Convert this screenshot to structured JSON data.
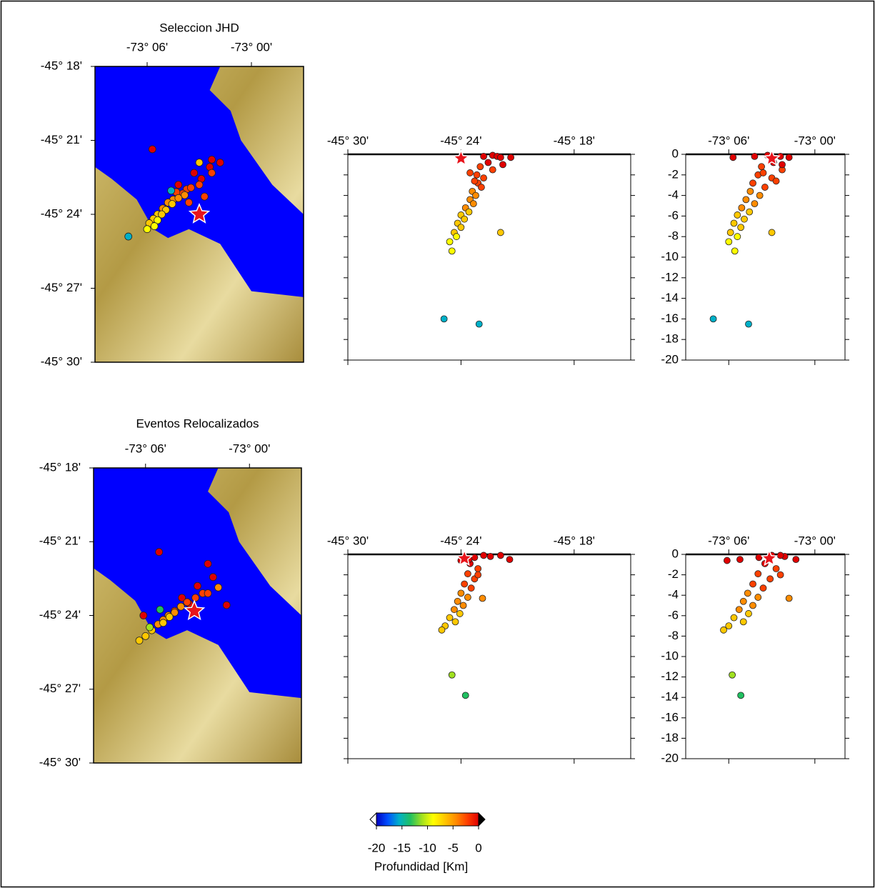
{
  "chart_data": [
    {
      "type": "scatter",
      "title": "Seleccion JHD",
      "map": {
        "xlim": [
          -73.15,
          -72.95
        ],
        "ylim": [
          -45.5,
          -45.3
        ],
        "xticks": [
          {
            "value": -73.1,
            "label": "-73° 06'"
          },
          {
            "value": -73.0,
            "label": "-73° 00'"
          }
        ],
        "yticks": [
          {
            "value": -45.3,
            "label": "-45° 18'"
          },
          {
            "value": -45.35,
            "label": "-45° 21'"
          },
          {
            "value": -45.4,
            "label": "-45° 24'"
          },
          {
            "value": -45.45,
            "label": "-45° 27'"
          },
          {
            "value": -45.5,
            "label": "-45° 30'"
          }
        ]
      },
      "lat_section": {
        "xlim": [
          -45.5,
          -45.25
        ],
        "xticks": [
          {
            "value": -45.5,
            "label": "-45° 30'"
          },
          {
            "value": -45.4,
            "label": "-45° 24'"
          },
          {
            "value": -45.3,
            "label": "-45° 18'"
          }
        ]
      },
      "lon_section": {
        "xlim": [
          -73.15,
          -72.965
        ],
        "xticks": [
          {
            "value": -73.1,
            "label": "-73° 06'"
          },
          {
            "value": -73.0,
            "label": "-73° 00'"
          }
        ]
      },
      "depth_lim": [
        -20,
        0
      ],
      "depth_ticks": [
        0,
        -2,
        -4,
        -6,
        -8,
        -10,
        -12,
        -14,
        -16,
        -18,
        -20
      ],
      "mainshock": {
        "lon": -73.05,
        "lat": -45.4,
        "depth": -0.4
      },
      "events": {
        "lon": [
          -73.055,
          -73.04,
          -73.03,
          -73.07,
          -73.048,
          -73.062,
          -73.038,
          -73.066,
          -73.05,
          -73.072,
          -73.058,
          -73.075,
          -73.064,
          -73.08,
          -73.07,
          -73.085,
          -73.076,
          -73.09,
          -73.082,
          -73.094,
          -73.086,
          -73.098,
          -73.09,
          -73.1,
          -73.093,
          -73.05,
          -73.118,
          -73.077,
          -73.095,
          -73.038,
          -73.06,
          -73.045
        ],
        "lat": [
          -45.372,
          -45.368,
          -45.365,
          -45.38,
          -45.376,
          -45.383,
          -45.372,
          -45.386,
          -45.38,
          -45.385,
          -45.382,
          -45.39,
          -45.387,
          -45.392,
          -45.389,
          -45.396,
          -45.393,
          -45.4,
          -45.397,
          -45.403,
          -45.4,
          -45.406,
          -45.404,
          -45.41,
          -45.408,
          -45.365,
          -45.415,
          -45.384,
          -45.356,
          -45.363,
          -45.392,
          -45.388
        ],
        "depth": [
          -0.1,
          -0.2,
          -0.3,
          -0.2,
          -0.8,
          -1.2,
          -1.5,
          -2.0,
          -2.3,
          -2.8,
          -3.2,
          -3.6,
          -4.0,
          -4.4,
          -4.8,
          -5.2,
          -5.6,
          -5.9,
          -6.3,
          -6.7,
          -7.1,
          -7.6,
          -8.0,
          -8.5,
          -9.4,
          -7.6,
          -16.0,
          -16.5,
          -0.3,
          -1.0,
          -1.8,
          -2.6
        ]
      }
    },
    {
      "type": "scatter",
      "title": "Eventos Relocalizados",
      "map": {
        "xlim": [
          -73.15,
          -72.95
        ],
        "ylim": [
          -45.5,
          -45.3
        ],
        "xticks": [
          {
            "value": -73.1,
            "label": "-73° 06'"
          },
          {
            "value": -73.0,
            "label": "-73° 00'"
          }
        ],
        "yticks": [
          {
            "value": -45.3,
            "label": "-45° 18'"
          },
          {
            "value": -45.35,
            "label": "-45° 21'"
          },
          {
            "value": -45.4,
            "label": "-45° 24'"
          },
          {
            "value": -45.45,
            "label": "-45° 27'"
          },
          {
            "value": -45.5,
            "label": "-45° 30'"
          }
        ]
      },
      "lat_section": {
        "xlim": [
          -45.5,
          -45.25
        ],
        "xticks": [
          {
            "value": -45.5,
            "label": "-45° 30'"
          },
          {
            "value": -45.4,
            "label": "-45° 24'"
          },
          {
            "value": -45.3,
            "label": "-45° 18'"
          }
        ]
      },
      "lon_section": {
        "xlim": [
          -73.15,
          -72.965
        ],
        "xticks": [
          {
            "value": -73.1,
            "label": "-73° 06'"
          },
          {
            "value": -73.0,
            "label": "-73° 00'"
          }
        ]
      },
      "depth_lim": [
        -20,
        0
      ],
      "depth_ticks": [
        0,
        -2,
        -4,
        -6,
        -8,
        -10,
        -12,
        -14,
        -16,
        -18,
        -20
      ],
      "mainshock": {
        "lon": -73.053,
        "lat": -45.397,
        "depth": -0.4
      },
      "events": {
        "lon": [
          -73.05,
          -73.035,
          -73.065,
          -73.04,
          -73.058,
          -73.045,
          -73.066,
          -73.052,
          -73.072,
          -73.06,
          -73.078,
          -73.066,
          -73.083,
          -73.072,
          -73.088,
          -73.077,
          -73.094,
          -73.083,
          -73.1,
          -73.106,
          -73.03,
          -73.096,
          -73.086,
          -73.087,
          -73.102,
          -73.022,
          -73.04
        ],
        "lat": [
          -45.38,
          -45.374,
          -45.388,
          -45.365,
          -45.392,
          -45.385,
          -45.394,
          -45.388,
          -45.397,
          -45.391,
          -45.4,
          -45.394,
          -45.403,
          -45.398,
          -45.406,
          -45.401,
          -45.41,
          -45.405,
          -45.414,
          -45.417,
          -45.381,
          -45.408,
          -45.396,
          -45.357,
          -45.4,
          -45.393,
          -45.385
        ],
        "depth": [
          -0.1,
          -0.2,
          -0.3,
          -0.1,
          -0.9,
          -1.4,
          -1.9,
          -2.4,
          -2.9,
          -3.3,
          -3.8,
          -4.2,
          -4.6,
          -5.0,
          -5.4,
          -5.8,
          -6.2,
          -6.6,
          -7.0,
          -7.4,
          -4.3,
          -11.8,
          -13.8,
          -0.5,
          -0.6,
          -0.5,
          -2.0
        ]
      }
    }
  ],
  "colorbar": {
    "label": "Profundidad [Km]",
    "lim": [
      -20,
      0
    ],
    "ticks": [
      -20,
      -15,
      -10,
      -5,
      0
    ],
    "colors": [
      "#0000c0",
      "#0050ff",
      "#00b0c8",
      "#20c060",
      "#a0e020",
      "#ffff00",
      "#ffc800",
      "#ff8c00",
      "#ff4000",
      "#e00000"
    ]
  }
}
